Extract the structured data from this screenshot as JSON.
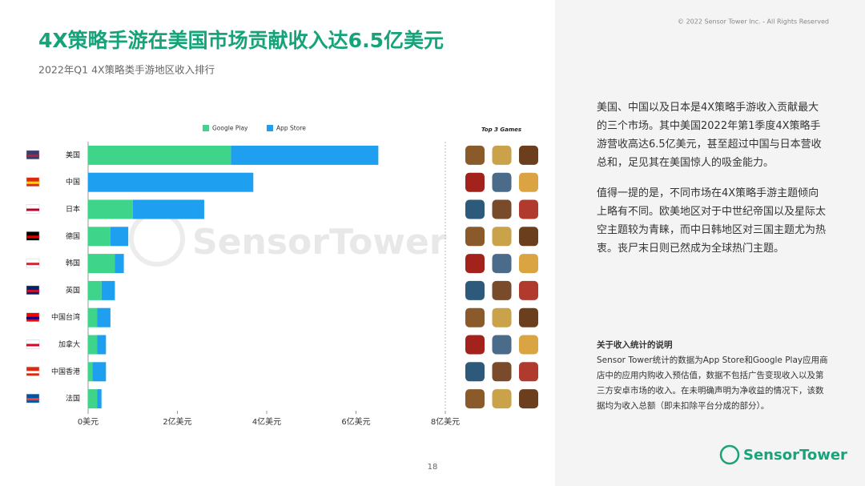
{
  "copyright": "© 2022 Sensor Tower Inc. - All Rights Reserved",
  "page_number": "18",
  "logo": "SensorTower",
  "watermark": "SensorTower",
  "side_text": {
    "paragraphs": [
      "美国、中国以及日本是4X策略手游收入贡献最大的三个市场。其中美国2022年第1季度4X策略手游营收高达6.5亿美元，甚至超过中国与日本营收总和，足见其在美国惊人的吸金能力。",
      "值得一提的是，不同市场在4X策略手游主题倾向上略有不同。欧美地区对于中世纪帝国以及星际太空主题较为青睐，而中日韩地区对三国主题尤为热衷。丧尸末日则已然成为全球热门主题。"
    ],
    "note_title": "关于收入统计的说明",
    "note_body": "Sensor Tower统计的数据为App Store和Google Play应用商店中的应用内购收入预估值，数据不包括广告变现收入以及第三方安卓市场的收入。在未明确声明为净收益的情况下，该数据均为收入总额（即未扣除平台分成的部分）。"
  },
  "chart_data": {
    "type": "stacked-bar-horizontal",
    "title": "4X策略手游在美国市场贡献收入达6.5亿美元",
    "subtitle": "2022年Q1 4X策略类手游地区收入排行",
    "games_header": "Top 3 Games",
    "categories": [
      "美国",
      "中国",
      "日本",
      "德国",
      "韩国",
      "英国",
      "中国台湾",
      "加拿大",
      "中国香港",
      "法国"
    ],
    "series": [
      {
        "name": "Google Play",
        "color": "#3ed58b",
        "values": [
          3.2,
          0,
          1.0,
          0.5,
          0.6,
          0.3,
          0.2,
          0.2,
          0.1,
          0.2
        ]
      },
      {
        "name": "App Store",
        "color": "#1e9ff0",
        "values": [
          3.3,
          3.7,
          1.6,
          0.4,
          0.2,
          0.3,
          0.3,
          0.2,
          0.3,
          0.1
        ]
      }
    ],
    "xlim": [
      0,
      8
    ],
    "xticks": [
      {
        "value": 0,
        "label": "0美元"
      },
      {
        "value": 2,
        "label": "2亿美元"
      },
      {
        "value": 4,
        "label": "4亿美元"
      },
      {
        "value": 6,
        "label": "6亿美元"
      },
      {
        "value": 8,
        "label": "8亿美元"
      }
    ],
    "grid": false
  }
}
